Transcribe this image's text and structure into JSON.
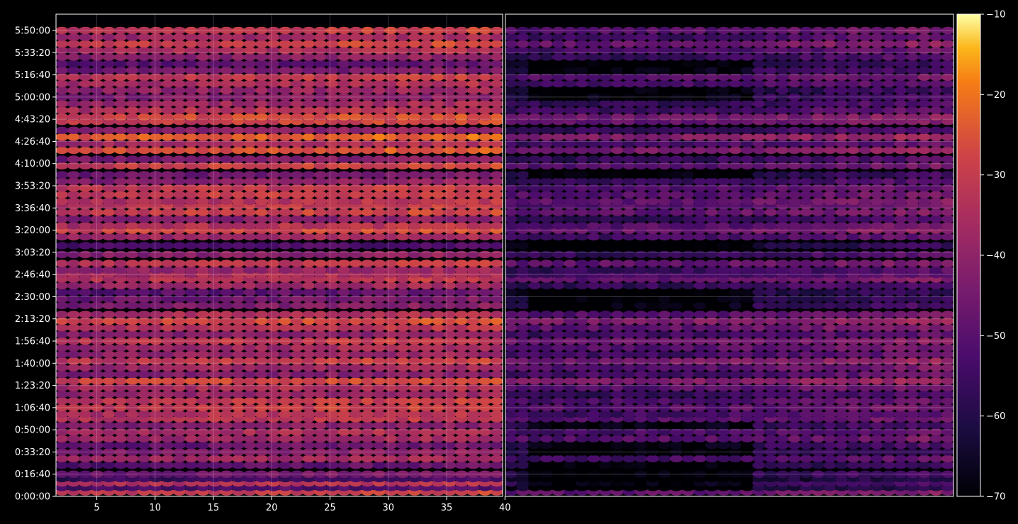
{
  "chart_data": {
    "type": "heatmap",
    "title": "",
    "panels": [
      {
        "name": "",
        "xlim": [
          1.5,
          39.8
        ],
        "ylim_seconds": [
          0,
          21000
        ]
      },
      {
        "name": "",
        "xlim": [
          40.2,
          79.8
        ],
        "ylim_seconds": [
          0,
          21000
        ]
      }
    ],
    "x_ticks": [
      {
        "value": 5,
        "label": "5"
      },
      {
        "value": 10,
        "label": "10"
      },
      {
        "value": 15,
        "label": "15"
      },
      {
        "value": 20,
        "label": "20"
      },
      {
        "value": 25,
        "label": "25"
      },
      {
        "value": 30,
        "label": "30"
      },
      {
        "value": 35,
        "label": "35"
      },
      {
        "value": 40,
        "label": "40"
      }
    ],
    "y_ticks": [
      {
        "value": 0,
        "label": "0:00:00"
      },
      {
        "value": 1000,
        "label": "0:16:40"
      },
      {
        "value": 2000,
        "label": "0:33:20"
      },
      {
        "value": 3000,
        "label": "0:50:00"
      },
      {
        "value": 4000,
        "label": "1:06:40"
      },
      {
        "value": 5000,
        "label": "1:23:20"
      },
      {
        "value": 6000,
        "label": "1:40:00"
      },
      {
        "value": 7000,
        "label": "1:56:40"
      },
      {
        "value": 8000,
        "label": "2:13:20"
      },
      {
        "value": 9000,
        "label": "2:30:00"
      },
      {
        "value": 10000,
        "label": "2:46:40"
      },
      {
        "value": 11000,
        "label": "3:03:20"
      },
      {
        "value": 12000,
        "label": "3:20:00"
      },
      {
        "value": 13000,
        "label": "3:36:40"
      },
      {
        "value": 14000,
        "label": "3:53:20"
      },
      {
        "value": 15000,
        "label": "4:10:00"
      },
      {
        "value": 16000,
        "label": "4:26:40"
      },
      {
        "value": 17000,
        "label": "4:43:20"
      },
      {
        "value": 18000,
        "label": "5:00:00"
      },
      {
        "value": 19000,
        "label": "5:16:40"
      },
      {
        "value": 20000,
        "label": "5:33:20"
      },
      {
        "value": 21000,
        "label": "5:50:00"
      }
    ],
    "colorbar": {
      "colormap": "inferno",
      "range": [
        -70,
        -10
      ],
      "ticks": [
        {
          "value": -10,
          "label": "−10"
        },
        {
          "value": -20,
          "label": "−20"
        },
        {
          "value": -30,
          "label": "−30"
        },
        {
          "value": -40,
          "label": "−40"
        },
        {
          "value": -50,
          "label": "−50"
        },
        {
          "value": -60,
          "label": "−60"
        },
        {
          "value": -70,
          "label": "−70"
        }
      ]
    },
    "grid": true,
    "rows_seconds": [
      200,
      400,
      600,
      800,
      1000,
      1400,
      1700,
      2000,
      2300,
      2600,
      2900,
      3200,
      3500,
      3700,
      4000,
      4300,
      4600,
      4900,
      5200,
      5500,
      5800,
      6100,
      6400,
      6700,
      7000,
      7300,
      7600,
      7900,
      8200,
      8600,
      8900,
      9200,
      9500,
      9800,
      10000,
      10200,
      10500,
      10900,
      11300,
      11700,
      12000,
      12200,
      12500,
      12800,
      13100,
      13300,
      13600,
      13900,
      14200,
      14500,
      14900,
      15200,
      15600,
      15900,
      16200,
      16500,
      16900,
      17100,
      17400,
      17700,
      18000,
      18300,
      18600,
      18900,
      19200,
      19500,
      19800,
      20100,
      20400,
      20700,
      21000
    ],
    "row_levels_left": [
      -33,
      -55,
      -36,
      -58,
      -48,
      -52,
      -40,
      -45,
      -50,
      -40,
      -38,
      -45,
      -35,
      -36,
      -33,
      -34,
      -42,
      -38,
      -30,
      -45,
      -40,
      -33,
      -42,
      -40,
      -34,
      -44,
      -36,
      -30,
      -38,
      -46,
      -48,
      -52,
      -40,
      -35,
      -38,
      -42,
      -34,
      -44,
      -55,
      -40,
      -30,
      -36,
      -45,
      -32,
      -34,
      -36,
      -32,
      -34,
      -44,
      -48,
      -32,
      -46,
      -28,
      -38,
      -26,
      -44,
      -32,
      -30,
      -36,
      -40,
      -45,
      -42,
      -38,
      -34,
      -48,
      -52,
      -44,
      -38,
      -32,
      -40,
      -33
    ],
    "row_levels_right": [
      -50,
      -66,
      -60,
      -66,
      -60,
      -62,
      -55,
      -62,
      -60,
      -52,
      -55,
      -60,
      -52,
      -56,
      -52,
      -54,
      -58,
      -52,
      -45,
      -55,
      -52,
      -46,
      -55,
      -52,
      -48,
      -56,
      -50,
      -45,
      -52,
      -60,
      -62,
      -64,
      -58,
      -50,
      -55,
      -58,
      -50,
      -58,
      -64,
      -55,
      -48,
      -52,
      -58,
      -50,
      -52,
      -50,
      -52,
      -54,
      -58,
      -62,
      -52,
      -58,
      -46,
      -55,
      -44,
      -58,
      -50,
      -48,
      -56,
      -58,
      -60,
      -62,
      -55,
      -52,
      -60,
      -63,
      -58,
      -55,
      -48,
      -56,
      -52
    ],
    "column_trend_left": [
      0,
      2,
      3,
      4,
      5
    ],
    "column_trend_right": [
      0,
      1,
      2,
      5,
      8
    ]
  }
}
